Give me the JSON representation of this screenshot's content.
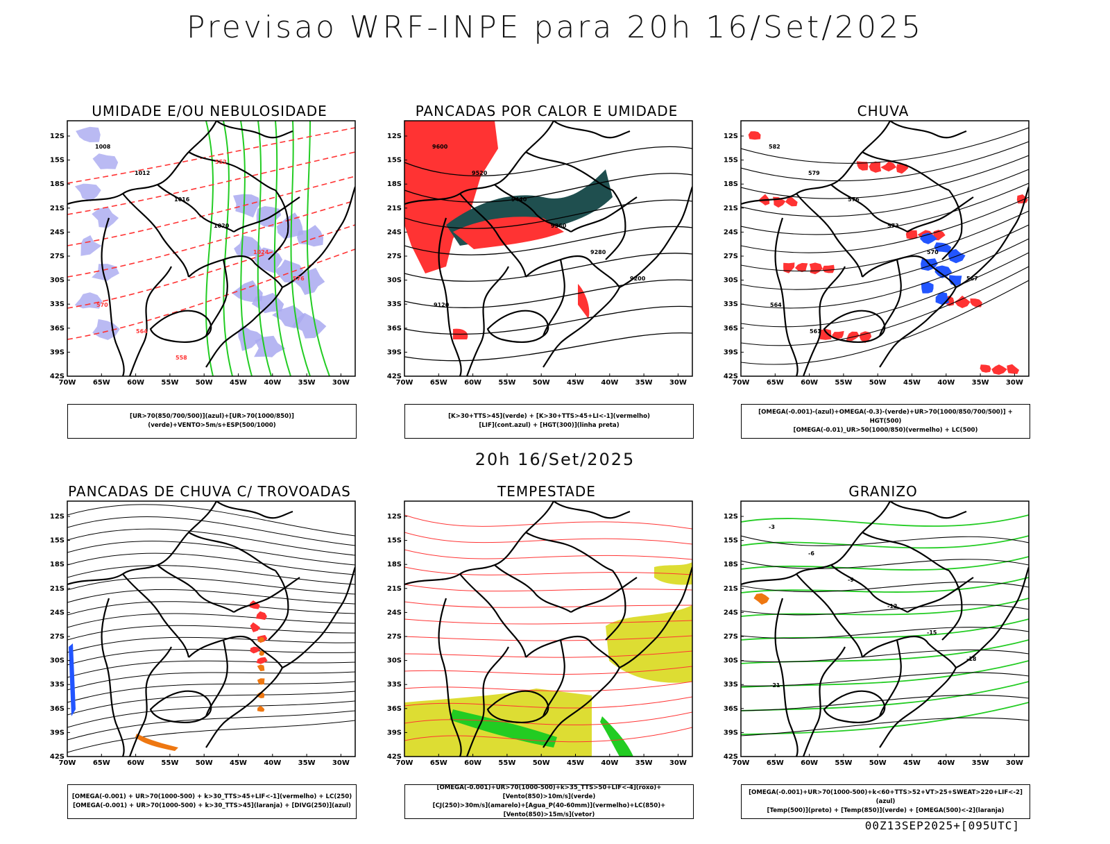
{
  "page": {
    "title": "Previsao WRF-INPE  para 20h 16/Set/2025",
    "middle_title": "20h 16/Set/2025",
    "footer": "00Z13SEP2025+[095UTC]"
  },
  "axes": {
    "lat_labels": [
      "12S",
      "15S",
      "18S",
      "21S",
      "24S",
      "27S",
      "30S",
      "33S",
      "36S",
      "39S",
      "42S"
    ],
    "lon_labels": [
      "70W",
      "65W",
      "60W",
      "55W",
      "50W",
      "45W",
      "40W",
      "35W",
      "30W"
    ]
  },
  "colors": {
    "humidity_blue": "#a9a9f0",
    "green": "#22cc22",
    "red": "#ff3333",
    "dark_teal": "#1f4f4f",
    "blue": "#2255ff",
    "orange": "#ee7711",
    "yellow": "#dddd33",
    "black": "#000000"
  },
  "panels": [
    {
      "title": "UMIDADE E/OU NEBULOSIDADE",
      "legend": [
        "[UR>70(850/700/500)](azul)+[UR>70(1000/850)](verde)+VENTO>5m/s+ESP(500/1000)"
      ],
      "contour_labels": [
        "1008",
        "1012",
        "1016",
        "1020",
        "1024",
        "576",
        "570",
        "564",
        "558",
        "552"
      ]
    },
    {
      "title": "PANCADAS POR CALOR E UMIDADE",
      "legend": [
        "[K>30+TTS>45](verde) + [K>30+TTS>45+LI<-1](vermelho)",
        "[LIF](cont.azul) + [HGT(300)](linha preta)"
      ],
      "contour_labels": [
        "9600",
        "9520",
        "9440",
        "9360",
        "9280",
        "9200",
        "9120"
      ]
    },
    {
      "title": "CHUVA",
      "legend": [
        "[OMEGA(-0.001)-(azul)+OMEGA(-0.3)-(verde)+UR>70(1000/850/700/500)] + HGT(500)",
        "[OMEGA(-0.01)_UR>50(1000/850)(vermelho) + LC(500)"
      ],
      "contour_labels": [
        "582",
        "579",
        "576",
        "573",
        "570",
        "567",
        "564",
        "561"
      ]
    },
    {
      "title": "PANCADAS DE CHUVA C/ TROVOADAS",
      "legend": [
        "[OMEGA(-0.001) + UR>70(1000-500) + k>30_TTS>45+LIF<-1](vermelho) + LC(250)",
        "[OMEGA(-0.001) + UR>70(1000-500) + k>30_TTS>45](laranja) + [DIVG(250)](azul)"
      ],
      "contour_labels": []
    },
    {
      "title": "TEMPESTADE",
      "legend": [
        "[OMEGA(-0.001)+UR>70(1000-500)+k>35_TTS>50+LIF<-4](roxo)+[Vento(850)>10m/s](verde)",
        "[CJ(250)>30m/s](amarelo)+[Agua_P(40-60mm)](vermelho)+LC(850)+[Vento(850)>15m/s](vetor)"
      ],
      "contour_labels": []
    },
    {
      "title": "GRANIZO",
      "legend": [
        "[OMEGA(-0.001)+UR>70(1000-500)+k<60+TTS>52+VT>25+SWEAT>220+LIF<-2](azul)",
        "[Temp(500)](preto) + [Temp(850)](verde) + [OMEGA(500)<-2](laranja)"
      ],
      "contour_labels": [
        "-3",
        "-6",
        "-9",
        "-12",
        "-15",
        "-18",
        "-21"
      ]
    }
  ]
}
